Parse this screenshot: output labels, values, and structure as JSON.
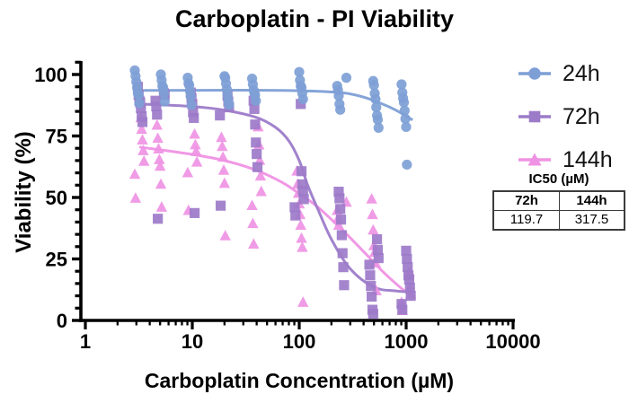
{
  "figure_title": "Carboplatin - PI Viability",
  "axes": {
    "x_label": "Carboplatin Concentration (µM)",
    "y_label": "Viability (%)"
  },
  "legend": {
    "items": [
      {
        "label": "24h"
      },
      {
        "label": "72h"
      },
      {
        "label": "144h"
      }
    ]
  },
  "ic50": {
    "title": "IC50 (µM)",
    "columns": [
      "72h",
      "144h"
    ],
    "values": [
      "119.7",
      "317.5"
    ]
  },
  "chart_data": {
    "type": "scatter",
    "title": "Carboplatin - PI Viability",
    "xlabel": "Carboplatin Concentration (µM)",
    "ylabel": "Viability (%)",
    "x_scale": "log",
    "xlim": [
      1,
      10000
    ],
    "ylim": [
      0,
      100
    ],
    "x_ticks": [
      1,
      10,
      100,
      1000,
      10000
    ],
    "y_ticks": [
      0,
      25,
      50,
      75,
      100
    ],
    "y_minor_step": 5,
    "grid": false,
    "legend_position": "right",
    "concentrations_uM_estimated": [
      3.2,
      5,
      10,
      20,
      40,
      100,
      250,
      500,
      1000
    ],
    "series": [
      {
        "name": "24h",
        "marker": "circle",
        "color": "#7E9FD6",
        "points": [
          [
            3.2,
            101
          ],
          [
            3.2,
            99
          ],
          [
            3.2,
            97
          ],
          [
            3.2,
            95
          ],
          [
            3.2,
            93
          ],
          [
            3.2,
            91
          ],
          [
            3.2,
            88
          ],
          [
            5,
            100
          ],
          [
            5,
            98
          ],
          [
            5,
            96
          ],
          [
            5,
            94
          ],
          [
            5,
            92
          ],
          [
            5,
            89
          ],
          [
            10,
            99
          ],
          [
            10,
            97
          ],
          [
            10,
            95
          ],
          [
            10,
            93
          ],
          [
            10,
            91
          ],
          [
            10,
            88
          ],
          [
            20,
            100
          ],
          [
            20,
            98
          ],
          [
            20,
            96
          ],
          [
            20,
            94
          ],
          [
            20,
            92
          ],
          [
            20,
            90
          ],
          [
            20,
            87
          ],
          [
            40,
            98
          ],
          [
            40,
            96
          ],
          [
            40,
            94
          ],
          [
            40,
            93
          ],
          [
            40,
            91
          ],
          [
            40,
            89
          ],
          [
            100,
            101
          ],
          [
            100,
            98
          ],
          [
            100,
            96
          ],
          [
            100,
            94
          ],
          [
            100,
            92
          ],
          [
            100,
            90
          ],
          [
            250,
            99
          ],
          [
            250,
            96
          ],
          [
            250,
            93
          ],
          [
            250,
            91
          ],
          [
            250,
            88
          ],
          [
            250,
            86
          ],
          [
            500,
            98
          ],
          [
            500,
            95
          ],
          [
            500,
            92
          ],
          [
            500,
            90
          ],
          [
            500,
            87
          ],
          [
            500,
            84
          ],
          [
            500,
            81
          ],
          [
            500,
            78
          ],
          [
            1000,
            96
          ],
          [
            1000,
            93
          ],
          [
            1000,
            91
          ],
          [
            1000,
            88
          ],
          [
            1000,
            85
          ],
          [
            1000,
            82
          ],
          [
            1000,
            79
          ],
          [
            1000,
            64
          ]
        ],
        "curve": [
          [
            3.2,
            93.5
          ],
          [
            30,
            93.6
          ],
          [
            100,
            93.4
          ],
          [
            250,
            92.6
          ],
          [
            400,
            90.8
          ],
          [
            600,
            88
          ],
          [
            800,
            85.5
          ],
          [
            1150,
            81.5
          ]
        ]
      },
      {
        "name": "72h",
        "marker": "square",
        "color": "#9C7BC9",
        "ic50_uM": 119.7,
        "points": [
          [
            3.2,
            95
          ],
          [
            3.2,
            92
          ],
          [
            3.2,
            90
          ],
          [
            3.2,
            88
          ],
          [
            3.2,
            86
          ],
          [
            3.2,
            83
          ],
          [
            3.2,
            81
          ],
          [
            5,
            93
          ],
          [
            5,
            91
          ],
          [
            5,
            89
          ],
          [
            5,
            87
          ],
          [
            5,
            84
          ],
          [
            5,
            42
          ],
          [
            10,
            92
          ],
          [
            10,
            90
          ],
          [
            10,
            88
          ],
          [
            10,
            85
          ],
          [
            10,
            83
          ],
          [
            10,
            43
          ],
          [
            20,
            91
          ],
          [
            20,
            89
          ],
          [
            20,
            87
          ],
          [
            20,
            84
          ],
          [
            20,
            46
          ],
          [
            40,
            89
          ],
          [
            40,
            86
          ],
          [
            40,
            80
          ],
          [
            40,
            73
          ],
          [
            40,
            67
          ],
          [
            40,
            62
          ],
          [
            100,
            88
          ],
          [
            100,
            61
          ],
          [
            100,
            56
          ],
          [
            100,
            52
          ],
          [
            100,
            49
          ],
          [
            100,
            46
          ],
          [
            100,
            43
          ],
          [
            250,
            53
          ],
          [
            250,
            49
          ],
          [
            250,
            45
          ],
          [
            250,
            41
          ],
          [
            250,
            35
          ],
          [
            250,
            28
          ],
          [
            250,
            21
          ],
          [
            250,
            14
          ],
          [
            500,
            33
          ],
          [
            500,
            29
          ],
          [
            500,
            26
          ],
          [
            500,
            22
          ],
          [
            500,
            18
          ],
          [
            500,
            14
          ],
          [
            500,
            10
          ],
          [
            500,
            5
          ],
          [
            500,
            2
          ],
          [
            1000,
            28
          ],
          [
            1000,
            25
          ],
          [
            1000,
            22
          ],
          [
            1000,
            19
          ],
          [
            1000,
            16
          ],
          [
            1000,
            13
          ],
          [
            1000,
            10
          ],
          [
            1000,
            7
          ],
          [
            1000,
            5
          ]
        ],
        "curve": [
          [
            3.2,
            88
          ],
          [
            10,
            87
          ],
          [
            20,
            85.5
          ],
          [
            40,
            82.5
          ],
          [
            60,
            78.5
          ],
          [
            80,
            73
          ],
          [
            100,
            65
          ],
          [
            120,
            55
          ],
          [
            150,
            45
          ],
          [
            200,
            33
          ],
          [
            300,
            21
          ],
          [
            500,
            13.5
          ],
          [
            800,
            12
          ],
          [
            1150,
            11.5
          ]
        ]
      },
      {
        "name": "144h",
        "marker": "triangle",
        "color": "#EF92E4",
        "ic50_uM": 317.5,
        "points": [
          [
            3.2,
            83
          ],
          [
            3.2,
            77
          ],
          [
            3.2,
            73
          ],
          [
            3.2,
            69
          ],
          [
            3.2,
            65
          ],
          [
            3.2,
            60
          ],
          [
            3.2,
            49
          ],
          [
            5,
            79
          ],
          [
            5,
            74
          ],
          [
            5,
            70
          ],
          [
            5,
            66
          ],
          [
            5,
            62
          ],
          [
            5,
            55
          ],
          [
            5,
            46
          ],
          [
            10,
            76
          ],
          [
            10,
            72
          ],
          [
            10,
            68
          ],
          [
            10,
            64
          ],
          [
            10,
            60
          ],
          [
            10,
            45
          ],
          [
            20,
            75
          ],
          [
            20,
            70
          ],
          [
            20,
            66
          ],
          [
            20,
            61
          ],
          [
            20,
            56
          ],
          [
            20,
            35
          ],
          [
            40,
            78
          ],
          [
            40,
            71
          ],
          [
            40,
            65
          ],
          [
            40,
            59
          ],
          [
            40,
            53
          ],
          [
            40,
            46
          ],
          [
            40,
            39
          ],
          [
            40,
            31
          ],
          [
            100,
            61
          ],
          [
            100,
            56
          ],
          [
            100,
            51
          ],
          [
            100,
            47
          ],
          [
            100,
            43
          ],
          [
            100,
            39
          ],
          [
            100,
            34
          ],
          [
            100,
            29
          ],
          [
            100,
            7
          ],
          [
            250,
            48
          ],
          [
            250,
            45
          ],
          [
            250,
            42
          ],
          [
            250,
            38
          ],
          [
            500,
            49
          ],
          [
            500,
            43
          ],
          [
            500,
            37
          ],
          [
            500,
            31
          ],
          [
            500,
            27
          ],
          [
            500,
            23
          ],
          [
            500,
            12
          ],
          [
            1000,
            20
          ],
          [
            1000,
            14
          ],
          [
            1000,
            10
          ],
          [
            1000,
            7
          ],
          [
            1000,
            4
          ]
        ],
        "curve": [
          [
            3.2,
            70.5
          ],
          [
            10,
            67.5
          ],
          [
            20,
            65
          ],
          [
            40,
            61
          ],
          [
            70,
            56
          ],
          [
            100,
            51.5
          ],
          [
            150,
            46
          ],
          [
            250,
            37
          ],
          [
            400,
            28
          ],
          [
            600,
            20
          ],
          [
            850,
            14
          ],
          [
            1150,
            9.5
          ]
        ]
      }
    ]
  }
}
